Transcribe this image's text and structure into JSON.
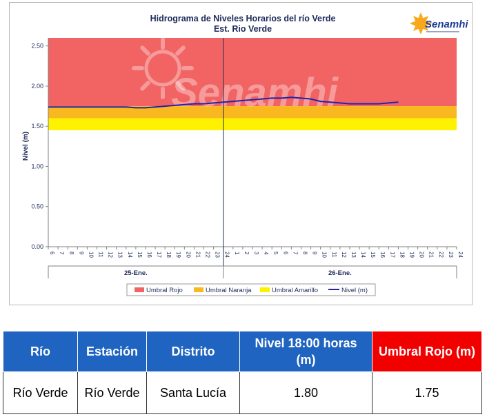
{
  "chart_data": {
    "type": "line",
    "title": "Hidrograma de Niveles Horarios del río Verde",
    "subtitle": "Est. Rio Verde",
    "logo_text": "Senamhi",
    "watermark_text": "Senamhi",
    "ylabel": "Nivel (m)",
    "ylim": [
      0,
      2.6
    ],
    "yticks": [
      "0.00",
      "0.50",
      "1.00",
      "1.50",
      "2.00",
      "2.50"
    ],
    "ytick_values": [
      0,
      0.5,
      1.0,
      1.5,
      2.0,
      2.5
    ],
    "hour_ticks_day1": [
      "6",
      "7",
      "8",
      "9",
      "10",
      "11",
      "12",
      "13",
      "14",
      "15",
      "16",
      "17",
      "18",
      "19",
      "20",
      "21",
      "22",
      "23",
      "24"
    ],
    "hour_ticks_day2": [
      "1",
      "2",
      "3",
      "4",
      "5",
      "6",
      "7",
      "8",
      "9",
      "10",
      "11",
      "12",
      "13",
      "14",
      "15",
      "16",
      "17",
      "18",
      "19",
      "20",
      "21",
      "22",
      "23",
      "24"
    ],
    "day_labels": [
      "25-Ene.",
      "26-Ene."
    ],
    "bands": [
      {
        "name": "Umbral Rojo",
        "from": 1.75,
        "to": 2.6,
        "color": "#f26464"
      },
      {
        "name": "Umbral Naranja",
        "from": 1.6,
        "to": 1.75,
        "color": "#f9b81f"
      },
      {
        "name": "Umbral Amarillo",
        "from": 1.45,
        "to": 1.6,
        "color": "#fff200"
      }
    ],
    "series": [
      {
        "name": "Nivel (m)",
        "color": "#2323a6",
        "hours": [
          6,
          7,
          8,
          9,
          10,
          11,
          12,
          13,
          14,
          15,
          16,
          17,
          18,
          19,
          20,
          21,
          22,
          23,
          24,
          25,
          26,
          27,
          28,
          29,
          30,
          31,
          32,
          33,
          34,
          35,
          36,
          37,
          38,
          39,
          40,
          41,
          42
        ],
        "values": [
          1.74,
          1.74,
          1.74,
          1.74,
          1.74,
          1.74,
          1.74,
          1.74,
          1.74,
          1.73,
          1.73,
          1.74,
          1.75,
          1.76,
          1.77,
          1.78,
          1.78,
          1.79,
          1.8,
          1.81,
          1.82,
          1.83,
          1.84,
          1.85,
          1.85,
          1.86,
          1.85,
          1.84,
          1.81,
          1.8,
          1.79,
          1.78,
          1.78,
          1.78,
          1.78,
          1.79,
          1.8
        ]
      }
    ],
    "legend": [
      "Umbral Rojo",
      "Umbral Naranja",
      "Umbral Amarillo",
      "Nivel (m)"
    ],
    "legend_placement": "bottom"
  },
  "table": {
    "headers": [
      "Río",
      "Estación",
      "Distrito",
      "Nivel 18:00 horas (m)",
      "Umbral Rojo (m)"
    ],
    "row": [
      "Río Verde",
      "Río Verde",
      "Santa Lucía",
      "1.80",
      "1.75"
    ]
  },
  "colors": {
    "header_blue": "#1f64c0",
    "header_red": "#f20000",
    "level_line": "#2323a6"
  }
}
